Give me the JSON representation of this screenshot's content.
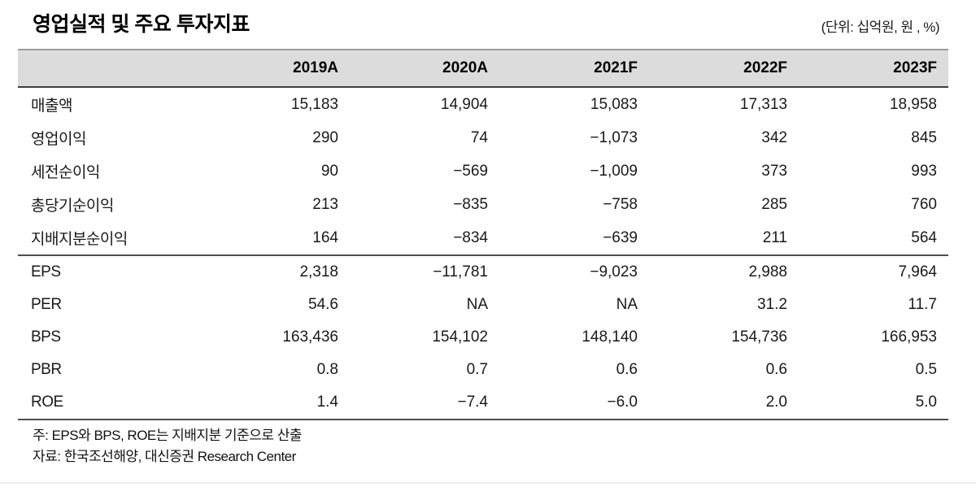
{
  "title": "영업실적 및 주요 투자지표",
  "unit_note": "(단위: 십억원, 원 , %)",
  "table": {
    "columns": [
      "2019A",
      "2020A",
      "2021F",
      "2022F",
      "2023F"
    ],
    "sections": [
      {
        "rows": [
          {
            "label": "매출액",
            "values": [
              "15,183",
              "14,904",
              "15,083",
              "17,313",
              "18,958"
            ]
          },
          {
            "label": "영업이익",
            "values": [
              "290",
              "74",
              "−1,073",
              "342",
              "845"
            ]
          },
          {
            "label": "세전순이익",
            "values": [
              "90",
              "−569",
              "−1,009",
              "373",
              "993"
            ]
          },
          {
            "label": "총당기순이익",
            "values": [
              "213",
              "−835",
              "−758",
              "285",
              "760"
            ]
          },
          {
            "label": "지배지분순이익",
            "values": [
              "164",
              "−834",
              "−639",
              "211",
              "564"
            ]
          }
        ]
      },
      {
        "rows": [
          {
            "label": "EPS",
            "values": [
              "2,318",
              "−11,781",
              "−9,023",
              "2,988",
              "7,964"
            ]
          },
          {
            "label": "PER",
            "values": [
              "54.6",
              "NA",
              "NA",
              "31.2",
              "11.7"
            ]
          },
          {
            "label": "BPS",
            "values": [
              "163,436",
              "154,102",
              "148,140",
              "154,736",
              "166,953"
            ]
          },
          {
            "label": "PBR",
            "values": [
              "0.8",
              "0.7",
              "0.6",
              "0.6",
              "0.5"
            ]
          },
          {
            "label": "ROE",
            "values": [
              "1.4",
              "−7.4",
              "−6.0",
              "2.0",
              "5.0"
            ]
          }
        ]
      }
    ]
  },
  "notes": [
    "주: EPS와 BPS, ROE는 지배지분 기준으로 산출",
    "자료: 한국조선해양, 대신증권 Research Center"
  ],
  "colors": {
    "header_bg": "#dcdcdc",
    "header_top_border": "#9b9b9b",
    "rule_dark": "#3f3f3f",
    "text": "#1a1a1a"
  }
}
